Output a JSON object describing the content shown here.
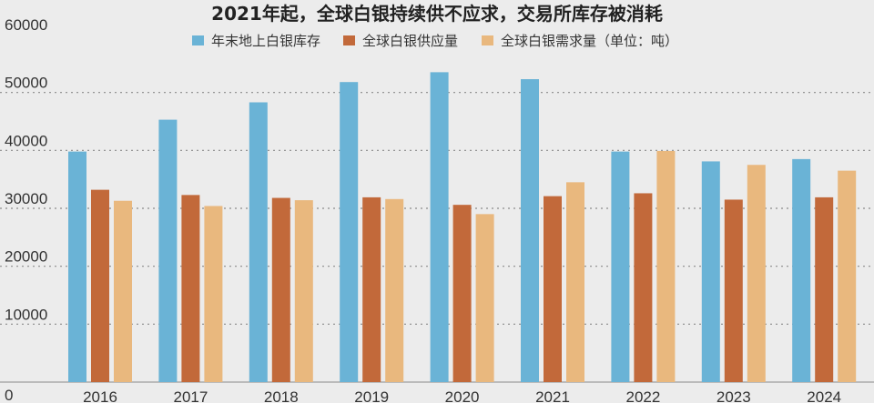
{
  "chart_data": {
    "type": "bar",
    "title": "2021年起，全球白银持续供不应求，交易所库存被消耗",
    "xlabel": "",
    "ylabel": "",
    "categories": [
      "2016",
      "2017",
      "2018",
      "2019",
      "2020",
      "2021",
      "2022",
      "2023",
      "2024"
    ],
    "series": [
      {
        "name": "年末地上白银库存",
        "color": "#6ab3d6",
        "values": [
          39800,
          45300,
          48300,
          51800,
          53500,
          52300,
          39800,
          38100,
          38500
        ]
      },
      {
        "name": "全球白银供应量",
        "color": "#c2693a",
        "values": [
          33200,
          32300,
          31800,
          31900,
          30600,
          32100,
          32600,
          31500,
          31900
        ]
      },
      {
        "name": "全球白银需求量（单位：吨）",
        "color": "#e9b87e",
        "values": [
          31300,
          30400,
          31400,
          31600,
          29000,
          34500,
          39900,
          37500,
          36500
        ]
      }
    ],
    "yticks": [
      "0",
      "10000",
      "20000",
      "30000",
      "40000",
      "50000",
      "60000"
    ],
    "ylim": [
      0,
      60000
    ],
    "grid": true,
    "gridstyle": "dotted",
    "legend": "top"
  },
  "colors": {
    "background": "#ececec",
    "grid": "#8a8a8a",
    "axis": "#8a8a8a"
  }
}
